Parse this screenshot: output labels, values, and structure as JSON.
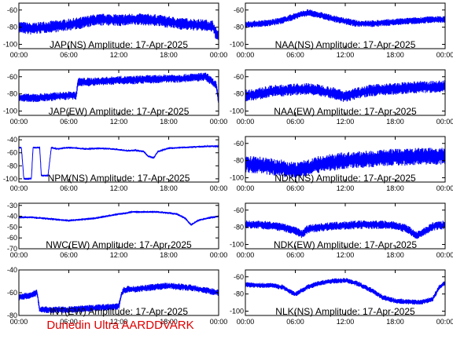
{
  "caption": "Dunedin Ultra AARDDVARK",
  "colors": {
    "series": "#0000ff",
    "axis": "#000000",
    "caption": "#e00000",
    "background": "#ffffff"
  },
  "chart_data": [
    {
      "type": "line",
      "title": "JAP(NS) Amplitude: 17-Apr-2025",
      "x_ticks": [
        "00:00",
        "06:00",
        "12:00",
        "18:00",
        "00:00"
      ],
      "y_ticks": [
        -60,
        -80,
        -100
      ],
      "ylim": [
        -105,
        -52
      ],
      "xlim_hours": [
        0,
        24
      ],
      "series": [
        {
          "x": [
            0,
            1.5,
            3,
            4.5,
            6,
            7.5,
            9,
            10.5,
            12,
            13.5,
            15,
            16.5,
            18,
            19.5,
            21,
            22.5,
            23.3,
            23.7,
            24
          ],
          "y": [
            -80,
            -82,
            -80,
            -79,
            -77,
            -75,
            -72,
            -71,
            -72,
            -71,
            -71,
            -72,
            -74,
            -76,
            -77,
            -78,
            -79,
            -88,
            -90
          ],
          "spread": 14
        }
      ]
    },
    {
      "type": "line",
      "title": "NAA(NS) Amplitude: 17-Apr-2025",
      "x_ticks": [
        "00:00",
        "06:00",
        "12:00",
        "18:00",
        "00:00"
      ],
      "y_ticks": [
        -60,
        -80,
        -100
      ],
      "ylim": [
        -105,
        -52
      ],
      "xlim_hours": [
        0,
        24
      ],
      "series": [
        {
          "x": [
            0,
            1.5,
            3,
            4.5,
            6,
            7.5,
            9,
            10.5,
            12,
            13.5,
            15,
            16.5,
            18,
            19.5,
            21,
            22.5,
            24
          ],
          "y": [
            -77,
            -76,
            -75,
            -72,
            -67,
            -63,
            -66,
            -70,
            -73,
            -76,
            -76,
            -75,
            -74,
            -73,
            -72,
            -71,
            -71
          ],
          "spread": 8
        }
      ]
    },
    {
      "type": "line",
      "title": "JAP(EW) Amplitude: 17-Apr-2025",
      "x_ticks": [
        "00:00",
        "06:00",
        "12:00",
        "18:00",
        "00:00"
      ],
      "y_ticks": [
        -60,
        -80,
        -100
      ],
      "ylim": [
        -105,
        -52
      ],
      "xlim_hours": [
        0,
        24
      ],
      "series": [
        {
          "x": [
            0,
            1.5,
            3,
            4.5,
            6,
            6.9,
            7.1,
            9,
            10.5,
            12,
            13.5,
            15,
            16.5,
            18,
            19.5,
            21,
            22.5,
            23.7,
            24
          ],
          "y": [
            -84,
            -85,
            -84,
            -83,
            -82,
            -82,
            -66,
            -66,
            -65,
            -64,
            -64,
            -63,
            -63,
            -62,
            -62,
            -61,
            -60,
            -70,
            -90
          ],
          "spread": 10
        }
      ]
    },
    {
      "type": "line",
      "title": "NAA(EW) Amplitude: 17-Apr-2025",
      "x_ticks": [
        "00:00",
        "06:00",
        "12:00",
        "18:00",
        "00:00"
      ],
      "y_ticks": [
        -60,
        -80,
        -100
      ],
      "ylim": [
        -105,
        -52
      ],
      "xlim_hours": [
        0,
        24
      ],
      "series": [
        {
          "x": [
            0,
            1.5,
            3,
            4.5,
            6,
            7.5,
            9,
            10.5,
            12,
            13.5,
            15,
            16.5,
            18,
            19.5,
            21,
            22.5,
            24
          ],
          "y": [
            -82,
            -80,
            -77,
            -76,
            -75,
            -74,
            -76,
            -79,
            -83,
            -79,
            -76,
            -75,
            -74,
            -73,
            -72,
            -72,
            -71
          ],
          "spread": 14
        }
      ]
    },
    {
      "type": "line",
      "title": "NPM(NS) Amplitude: 17-Apr-2025",
      "x_ticks": [
        "00:00",
        "06:00",
        "12:00",
        "18:00",
        "00:00"
      ],
      "y_ticks": [
        -40,
        -60,
        -80,
        -100
      ],
      "ylim": [
        -105,
        -35
      ],
      "xlim_hours": [
        0,
        24
      ],
      "series": [
        {
          "x": [
            0,
            0.3,
            0.6,
            1.5,
            1.7,
            2.5,
            2.7,
            3.5,
            3.9,
            4.5,
            6,
            8,
            10,
            12,
            13,
            14,
            15,
            15.5,
            16.2,
            16.7,
            18,
            19.5,
            21,
            22.5,
            24
          ],
          "y": [
            -52,
            -52,
            -100,
            -100,
            -52,
            -52,
            -95,
            -95,
            -52,
            -54,
            -52,
            -54,
            -53,
            -55,
            -57,
            -56,
            -58,
            -65,
            -68,
            -58,
            -53,
            -52,
            -51,
            -50,
            -50
          ],
          "spread": 3
        }
      ]
    },
    {
      "type": "line",
      "title": "NDK(NS) Amplitude: 17-Apr-2025",
      "x_ticks": [
        "00:00",
        "06:00",
        "12:00",
        "18:00",
        "00:00"
      ],
      "y_ticks": [
        -60,
        -80,
        -100
      ],
      "ylim": [
        -105,
        -52
      ],
      "xlim_hours": [
        0,
        24
      ],
      "series": [
        {
          "x": [
            0,
            1.5,
            3,
            4.5,
            6,
            7.5,
            9,
            10.5,
            12,
            13.5,
            15,
            16.5,
            18,
            19.5,
            21,
            22.5,
            24
          ],
          "y": [
            -84,
            -85,
            -87,
            -89,
            -92,
            -88,
            -84,
            -82,
            -80,
            -79,
            -78,
            -77,
            -76,
            -76,
            -75,
            -75,
            -75
          ],
          "spread": 20
        }
      ]
    },
    {
      "type": "line",
      "title": "NWC(EW) Amplitude: 17-Apr-2025",
      "x_ticks": [
        "00:00",
        "06:00",
        "12:00",
        "18:00",
        "00:00"
      ],
      "y_ticks": [
        -30,
        -40,
        -50,
        -60,
        -70
      ],
      "ylim": [
        -70,
        -28
      ],
      "xlim_hours": [
        0,
        24
      ],
      "series": [
        {
          "x": [
            0,
            1.5,
            3,
            4.5,
            6,
            7.5,
            9,
            10.5,
            12,
            13,
            13.5,
            15,
            16.5,
            18,
            19,
            20,
            20.7,
            21.5,
            22.5,
            24
          ],
          "y": [
            -41,
            -41,
            -42,
            -43,
            -44,
            -43,
            -42,
            -40,
            -38,
            -37,
            -36,
            -36,
            -36,
            -37,
            -38,
            -42,
            -48,
            -44,
            -42,
            -40
          ],
          "spread": 2
        }
      ]
    },
    {
      "type": "line",
      "title": "NDK(EW) Amplitude: 17-Apr-2025",
      "x_ticks": [
        "00:00",
        "06:00",
        "12:00",
        "18:00",
        "00:00"
      ],
      "y_ticks": [
        -60,
        -80,
        -100
      ],
      "ylim": [
        -105,
        -52
      ],
      "xlim_hours": [
        0,
        24
      ],
      "series": [
        {
          "x": [
            0,
            1.5,
            3,
            4.5,
            6,
            6.8,
            7.5,
            9,
            10.5,
            12,
            13.5,
            15,
            16.5,
            18,
            19.5,
            20.5,
            21.5,
            22.5,
            24
          ],
          "y": [
            -77,
            -77,
            -78,
            -80,
            -84,
            -88,
            -82,
            -80,
            -79,
            -78,
            -77,
            -77,
            -77,
            -78,
            -82,
            -90,
            -85,
            -79,
            -77
          ],
          "spread": 10
        }
      ]
    },
    {
      "type": "line",
      "title": "INT(EW) Amplitude: 17-Apr-2025",
      "x_ticks": [
        "00:00",
        "06:00",
        "12:00",
        "18:00",
        "00:00"
      ],
      "y_ticks": [
        -40,
        -60,
        -80
      ],
      "ylim": [
        -80,
        -40
      ],
      "xlim_hours": [
        0,
        24
      ],
      "series": [
        {
          "x": [
            0,
            1.5,
            2.2,
            2.5,
            4,
            6,
            8,
            10,
            12,
            12.3,
            12.6,
            13,
            14,
            15,
            16.5,
            18,
            19.5,
            21,
            22.5,
            24
          ],
          "y": [
            -64,
            -62,
            -60,
            -75,
            -75,
            -75,
            -74,
            -73,
            -72,
            -62,
            -58,
            -57,
            -57,
            -56,
            -55,
            -54,
            -55,
            -56,
            -58,
            -60
          ],
          "spread": 6
        }
      ]
    },
    {
      "type": "line",
      "title": "NLK(NS) Amplitude: 17-Apr-2025",
      "x_ticks": [
        "00:00",
        "06:00",
        "12:00",
        "18:00",
        "00:00"
      ],
      "y_ticks": [
        -60,
        -80,
        -100
      ],
      "ylim": [
        -105,
        -52
      ],
      "xlim_hours": [
        0,
        24
      ],
      "series": [
        {
          "x": [
            0,
            1.5,
            3,
            4.5,
            5.5,
            6,
            7.5,
            9,
            10.5,
            12,
            13.5,
            15,
            16.5,
            18,
            19.5,
            21,
            22.5,
            23.3,
            24
          ],
          "y": [
            -69,
            -70,
            -70,
            -72,
            -78,
            -80,
            -72,
            -67,
            -65,
            -64,
            -68,
            -75,
            -84,
            -88,
            -89,
            -90,
            -86,
            -72,
            -67
          ],
          "spread": 6
        }
      ]
    }
  ]
}
